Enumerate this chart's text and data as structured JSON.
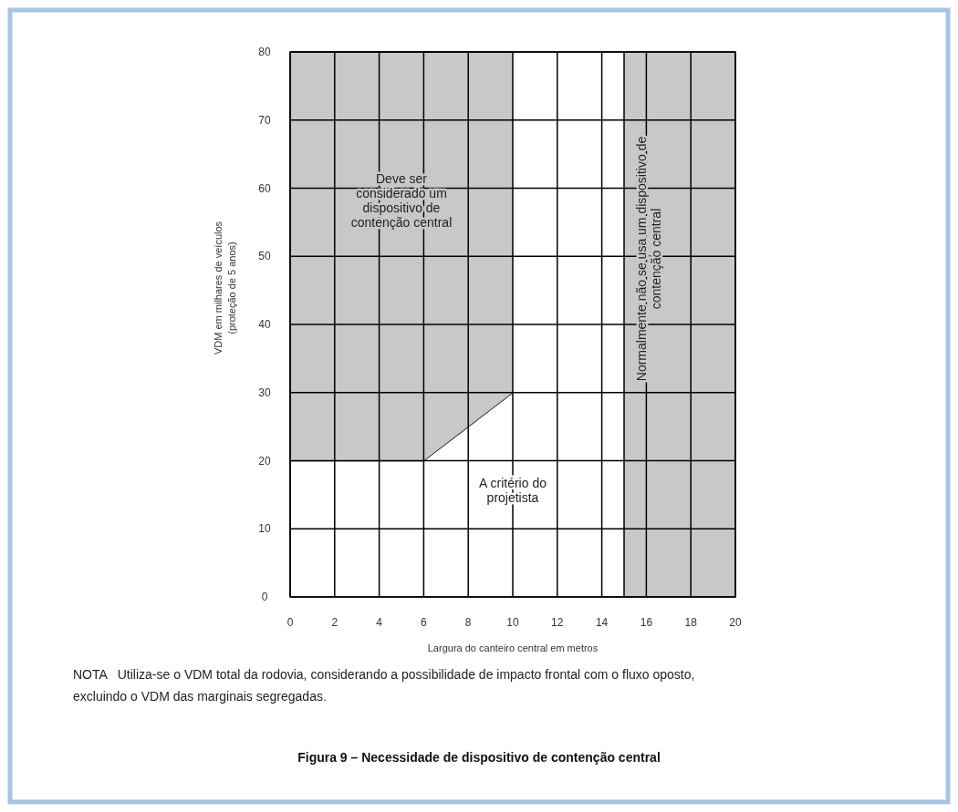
{
  "chart_data": {
    "type": "area",
    "title": "Figura 9 – Necessidade de dispositivo de contenção central",
    "xlabel": "Largura do canteiro central em metros",
    "ylabel": "VDM em milhares de veículos\n(proteção de 5 anos)",
    "x": [
      0,
      6,
      10
    ],
    "stacked": true,
    "series": [
      {
        "name": "A critério do\nprojetista",
        "color": "#ffffff",
        "values": [
          20,
          20,
          30
        ]
      },
      {
        "name": "Deve ser\nconsiderado um\ndispositivo de\ncontenção central",
        "color": "#c8c8c8",
        "values": [
          60,
          60,
          50
        ]
      }
    ],
    "bands": [
      {
        "axis": "x",
        "from": 15,
        "to": 20,
        "label": "Normalmente não se usa um dispositivo de\ncontenção central",
        "color": "#c8c8c8"
      }
    ],
    "xlim": [
      0,
      20
    ],
    "xticks": [
      0,
      2,
      4,
      6,
      8,
      10,
      12,
      14,
      16,
      18,
      20
    ],
    "ylim": [
      0,
      80
    ],
    "yticks": [
      0,
      10,
      20,
      30,
      40,
      50,
      60,
      70,
      80
    ],
    "grid": true,
    "annotations": [
      "NOTA   Utiliza-se o VDM total da rodovia, considerando a possibilidade de impacto frontal com o fluxo oposto, excluindo o VDM das marginais segregadas."
    ]
  }
}
